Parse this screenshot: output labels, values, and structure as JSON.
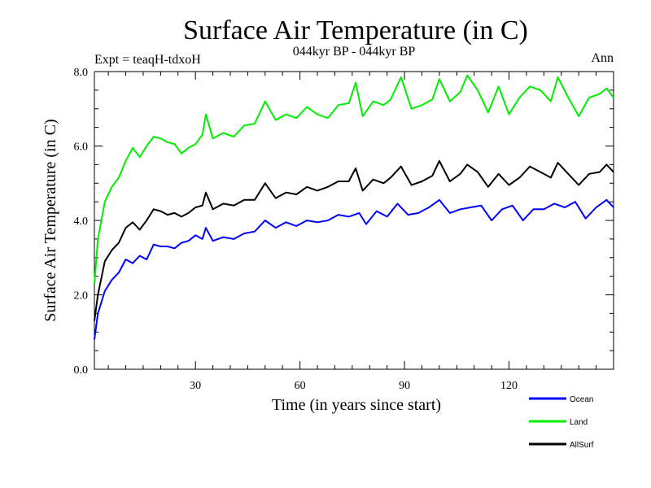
{
  "chart_data": {
    "type": "line",
    "title": "Surface Air Temperature (in C)",
    "subtitle": "044kyr BP - 044kyr BP",
    "expt_label": "Expt = teaqH-tdxoH",
    "period_label": "Ann",
    "xlabel": "Time (in years since start)",
    "ylabel": "Surface Air Temperature (in C)",
    "xlim": [
      1,
      150
    ],
    "ylim": [
      0,
      8
    ],
    "xticks": [
      30,
      60,
      90,
      120
    ],
    "xtick_labels": [
      "30",
      "60",
      "90",
      "120"
    ],
    "yticks": [
      0,
      2,
      4,
      6,
      8
    ],
    "ytick_labels": [
      "0.0",
      "2.0",
      "4.0",
      "6.0",
      "8.0"
    ],
    "grid": false,
    "series": [
      {
        "name": "Ocean",
        "color": "#0000ff",
        "points": [
          [
            1,
            0.8
          ],
          [
            2,
            1.5
          ],
          [
            4,
            2.1
          ],
          [
            6,
            2.4
          ],
          [
            8,
            2.6
          ],
          [
            10,
            2.95
          ],
          [
            12,
            2.85
          ],
          [
            14,
            3.05
          ],
          [
            16,
            2.95
          ],
          [
            18,
            3.35
          ],
          [
            20,
            3.3
          ],
          [
            22,
            3.3
          ],
          [
            24,
            3.25
          ],
          [
            26,
            3.4
          ],
          [
            28,
            3.45
          ],
          [
            30,
            3.6
          ],
          [
            32,
            3.5
          ],
          [
            33,
            3.8
          ],
          [
            35,
            3.45
          ],
          [
            38,
            3.55
          ],
          [
            41,
            3.5
          ],
          [
            44,
            3.65
          ],
          [
            47,
            3.7
          ],
          [
            50,
            4.0
          ],
          [
            53,
            3.8
          ],
          [
            56,
            3.95
          ],
          [
            59,
            3.85
          ],
          [
            62,
            4.0
          ],
          [
            65,
            3.95
          ],
          [
            68,
            4.0
          ],
          [
            71,
            4.15
          ],
          [
            74,
            4.1
          ],
          [
            77,
            4.2
          ],
          [
            79,
            3.9
          ],
          [
            82,
            4.25
          ],
          [
            85,
            4.1
          ],
          [
            88,
            4.45
          ],
          [
            91,
            4.15
          ],
          [
            94,
            4.2
          ],
          [
            97,
            4.35
          ],
          [
            100,
            4.55
          ],
          [
            103,
            4.2
          ],
          [
            106,
            4.3
          ],
          [
            109,
            4.35
          ],
          [
            112,
            4.4
          ],
          [
            115,
            4.0
          ],
          [
            118,
            4.3
          ],
          [
            121,
            4.4
          ],
          [
            124,
            4.0
          ],
          [
            127,
            4.3
          ],
          [
            130,
            4.3
          ],
          [
            133,
            4.45
          ],
          [
            136,
            4.35
          ],
          [
            139,
            4.5
          ],
          [
            142,
            4.05
          ],
          [
            145,
            4.35
          ],
          [
            148,
            4.55
          ],
          [
            150,
            4.35
          ]
        ]
      },
      {
        "name": "Land",
        "color": "#00ee00",
        "points": [
          [
            1,
            2.3
          ],
          [
            2,
            3.5
          ],
          [
            4,
            4.5
          ],
          [
            6,
            4.9
          ],
          [
            8,
            5.15
          ],
          [
            10,
            5.6
          ],
          [
            12,
            5.95
          ],
          [
            14,
            5.7
          ],
          [
            16,
            6.0
          ],
          [
            18,
            6.25
          ],
          [
            20,
            6.2
          ],
          [
            22,
            6.1
          ],
          [
            24,
            6.05
          ],
          [
            26,
            5.8
          ],
          [
            28,
            5.95
          ],
          [
            30,
            6.05
          ],
          [
            32,
            6.3
          ],
          [
            33,
            6.85
          ],
          [
            35,
            6.2
          ],
          [
            38,
            6.35
          ],
          [
            41,
            6.25
          ],
          [
            44,
            6.55
          ],
          [
            47,
            6.6
          ],
          [
            50,
            7.2
          ],
          [
            53,
            6.7
          ],
          [
            56,
            6.85
          ],
          [
            59,
            6.75
          ],
          [
            62,
            7.05
          ],
          [
            65,
            6.85
          ],
          [
            68,
            6.75
          ],
          [
            71,
            7.1
          ],
          [
            74,
            7.15
          ],
          [
            76,
            7.7
          ],
          [
            78,
            6.8
          ],
          [
            81,
            7.2
          ],
          [
            84,
            7.1
          ],
          [
            86,
            7.25
          ],
          [
            89,
            7.85
          ],
          [
            92,
            7.0
          ],
          [
            95,
            7.1
          ],
          [
            98,
            7.25
          ],
          [
            100,
            7.8
          ],
          [
            103,
            7.2
          ],
          [
            106,
            7.45
          ],
          [
            108,
            7.9
          ],
          [
            111,
            7.5
          ],
          [
            114,
            6.9
          ],
          [
            117,
            7.6
          ],
          [
            120,
            6.85
          ],
          [
            123,
            7.3
          ],
          [
            126,
            7.6
          ],
          [
            129,
            7.5
          ],
          [
            132,
            7.2
          ],
          [
            134,
            7.85
          ],
          [
            137,
            7.3
          ],
          [
            140,
            6.8
          ],
          [
            143,
            7.3
          ],
          [
            146,
            7.4
          ],
          [
            148,
            7.55
          ],
          [
            150,
            7.3
          ]
        ]
      },
      {
        "name": "AllSurf",
        "color": "#000000",
        "points": [
          [
            1,
            1.3
          ],
          [
            2,
            2.0
          ],
          [
            4,
            2.9
          ],
          [
            6,
            3.2
          ],
          [
            8,
            3.4
          ],
          [
            10,
            3.8
          ],
          [
            12,
            3.95
          ],
          [
            14,
            3.75
          ],
          [
            16,
            4.0
          ],
          [
            18,
            4.3
          ],
          [
            20,
            4.25
          ],
          [
            22,
            4.15
          ],
          [
            24,
            4.2
          ],
          [
            26,
            4.1
          ],
          [
            28,
            4.2
          ],
          [
            30,
            4.35
          ],
          [
            32,
            4.4
          ],
          [
            33,
            4.75
          ],
          [
            35,
            4.3
          ],
          [
            38,
            4.45
          ],
          [
            41,
            4.4
          ],
          [
            44,
            4.55
          ],
          [
            47,
            4.55
          ],
          [
            50,
            5.0
          ],
          [
            53,
            4.6
          ],
          [
            56,
            4.75
          ],
          [
            59,
            4.7
          ],
          [
            62,
            4.9
          ],
          [
            65,
            4.8
          ],
          [
            68,
            4.9
          ],
          [
            71,
            5.05
          ],
          [
            74,
            5.05
          ],
          [
            76,
            5.4
          ],
          [
            78,
            4.8
          ],
          [
            81,
            5.1
          ],
          [
            84,
            5.0
          ],
          [
            86,
            5.15
          ],
          [
            89,
            5.45
          ],
          [
            92,
            4.95
          ],
          [
            95,
            5.05
          ],
          [
            98,
            5.2
          ],
          [
            100,
            5.6
          ],
          [
            103,
            5.05
          ],
          [
            106,
            5.25
          ],
          [
            108,
            5.5
          ],
          [
            111,
            5.3
          ],
          [
            114,
            4.9
          ],
          [
            117,
            5.25
          ],
          [
            120,
            4.95
          ],
          [
            123,
            5.15
          ],
          [
            126,
            5.45
          ],
          [
            129,
            5.3
          ],
          [
            132,
            5.15
          ],
          [
            134,
            5.55
          ],
          [
            137,
            5.25
          ],
          [
            140,
            4.95
          ],
          [
            143,
            5.25
          ],
          [
            146,
            5.3
          ],
          [
            148,
            5.5
          ],
          [
            150,
            5.3
          ]
        ]
      }
    ],
    "legend": [
      "Ocean",
      "Land",
      "AllSurf"
    ]
  }
}
